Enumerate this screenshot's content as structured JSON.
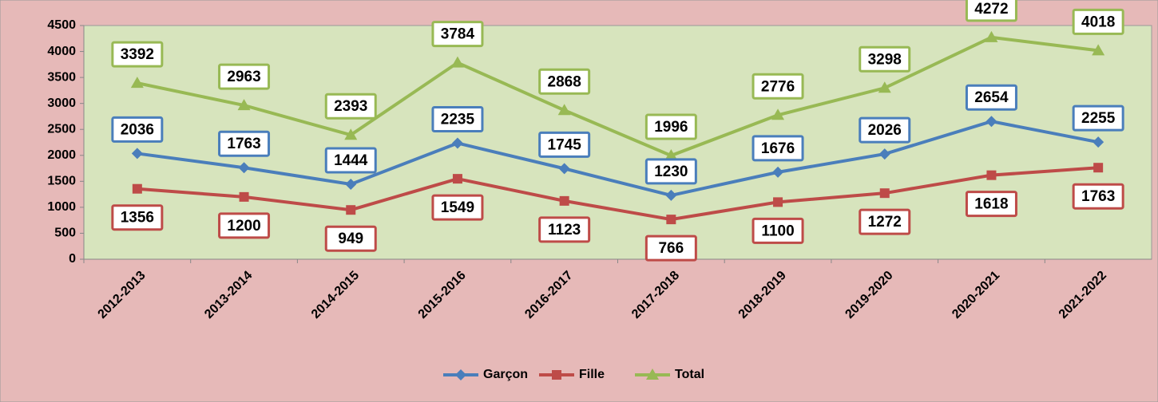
{
  "chart_data": {
    "type": "line",
    "categories": [
      "2012-2013",
      "2013-2014",
      "2014-2015",
      "2015-2016",
      "2016-2017",
      "2017-2018",
      "2018-2019",
      "2019-2020",
      "2020-2021",
      "2021-2022"
    ],
    "series": [
      {
        "name": "Garçon",
        "color": "#4a7ebb",
        "marker": "diamond",
        "values": [
          2036,
          1763,
          1444,
          2235,
          1745,
          1230,
          1676,
          2026,
          2654,
          2255
        ]
      },
      {
        "name": "Fille",
        "color": "#be4b48",
        "marker": "square",
        "values": [
          1356,
          1200,
          949,
          1549,
          1123,
          766,
          1100,
          1272,
          1618,
          1763
        ]
      },
      {
        "name": "Total",
        "color": "#98b954",
        "marker": "triangle",
        "values": [
          3392,
          2963,
          2393,
          3784,
          2868,
          1996,
          2776,
          3298,
          4272,
          4018
        ]
      }
    ],
    "ylim": [
      0,
      4500
    ],
    "yticks": [
      0,
      500,
      1000,
      1500,
      2000,
      2500,
      3000,
      3500,
      4000,
      4500
    ],
    "legend": "bottom"
  }
}
